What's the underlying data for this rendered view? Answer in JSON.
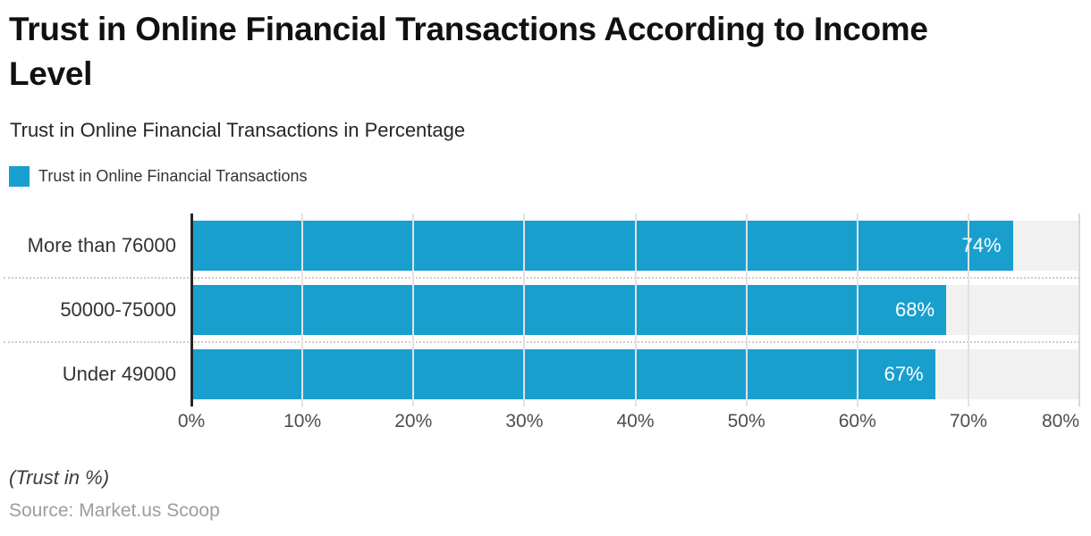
{
  "header": {
    "title": "Trust in Online Financial Transactions According to Income\nLevel",
    "subtitle": "Trust in Online Financial Transactions in Percentage"
  },
  "legend": {
    "label": "Trust in Online Financial Transactions",
    "swatch_color": "#199FCE"
  },
  "chart_data": {
    "type": "bar",
    "orientation": "horizontal",
    "title": "Trust in Online Financial Transactions According to Income Level",
    "subtitle": "Trust in Online Financial Transactions in Percentage",
    "series_name": "Trust in Online Financial Transactions",
    "categories": [
      "More than 76000",
      "50000-75000",
      "Under 49000"
    ],
    "values": [
      74,
      68,
      67
    ],
    "data_labels": [
      "74%",
      "68%",
      "67%"
    ],
    "xlabel": "",
    "ylabel": "",
    "xlim": [
      0,
      80
    ],
    "x_tick_labels": [
      "0%",
      "10%",
      "20%",
      "30%",
      "40%",
      "50%",
      "60%",
      "70%",
      "80%"
    ],
    "grid": true,
    "legend_position": "top-left",
    "bar_color": "#199FCE",
    "track_color": "#F1F1F2"
  },
  "footer": {
    "note": "(Trust in %)",
    "source": "Source: Market.us Scoop"
  }
}
